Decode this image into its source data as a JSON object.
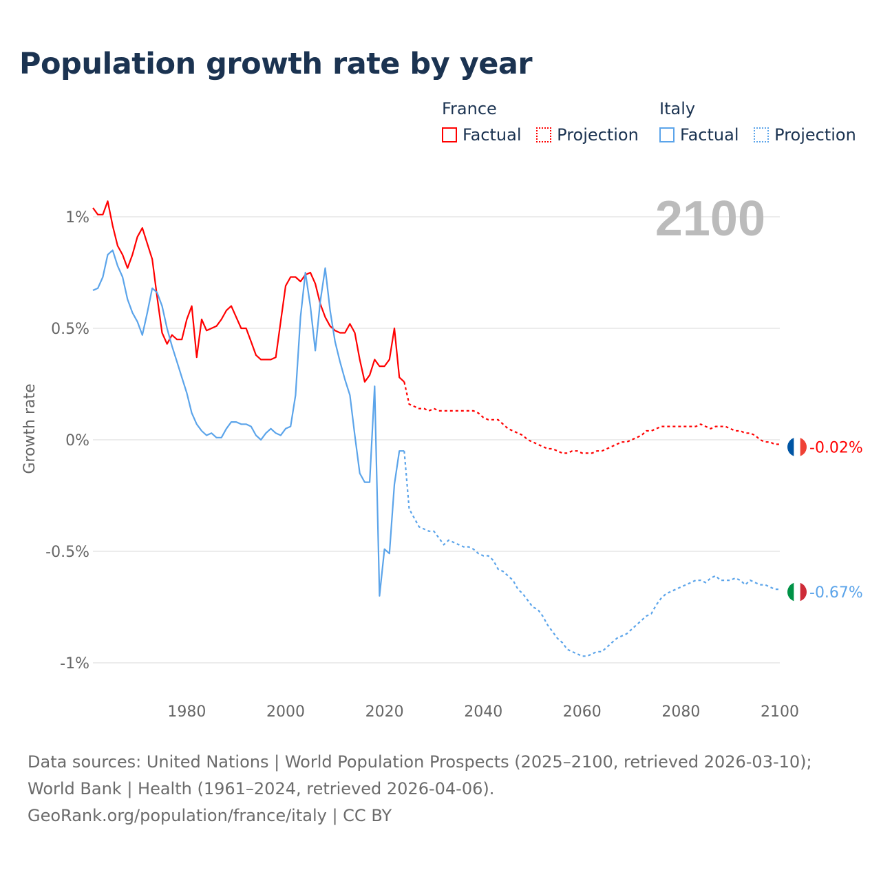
{
  "title": "Population growth rate by year",
  "legend": {
    "groups": [
      {
        "name": "France",
        "items": [
          "Factual",
          "Projection"
        ],
        "color": "#ff0000"
      },
      {
        "name": "Italy",
        "items": [
          "Factual",
          "Projection"
        ],
        "color": "#5ba4ea"
      }
    ]
  },
  "footer": {
    "sources": "Data sources: United Nations | World Population Prospects (2025–2100, retrieved 2026-03-10); World Bank | Health (1961–2024, retrieved 2026-04-06).",
    "credit": "GeoRank.org/population/france/italy | CC BY"
  },
  "chart_data": {
    "type": "line",
    "title": "Population growth rate by year",
    "ylabel": "Growth rate",
    "xlabel": "",
    "year_label": "2100",
    "xlim": [
      1961,
      2100
    ],
    "ylim": [
      -1.1,
      1.1
    ],
    "x_ticks": [
      1980,
      2000,
      2020,
      2040,
      2060,
      2080,
      2100
    ],
    "y_ticks": [
      {
        "v": 1,
        "label": "1%"
      },
      {
        "v": 0.5,
        "label": "0.5%"
      },
      {
        "v": 0,
        "label": "0%"
      },
      {
        "v": -0.5,
        "label": "-0.5%"
      },
      {
        "v": -1,
        "label": "-1%"
      }
    ],
    "grid": true,
    "series": [
      {
        "name": "France",
        "color": "#ff0000",
        "end_label": "-0.02%",
        "flag": [
          "#0055a4",
          "#ffffff",
          "#ef4135"
        ],
        "factual_start": 1961,
        "factual": [
          1.04,
          1.01,
          1.01,
          1.07,
          0.96,
          0.87,
          0.83,
          0.77,
          0.83,
          0.91,
          0.95,
          0.88,
          0.81,
          0.64,
          0.48,
          0.43,
          0.47,
          0.45,
          0.45,
          0.54,
          0.6,
          0.37,
          0.54,
          0.49,
          0.5,
          0.51,
          0.54,
          0.58,
          0.6,
          0.55,
          0.5,
          0.5,
          0.44,
          0.38,
          0.36,
          0.36,
          0.36,
          0.37,
          0.53,
          0.69,
          0.73,
          0.73,
          0.71,
          0.74,
          0.75,
          0.7,
          0.61,
          0.55,
          0.51,
          0.49,
          0.48,
          0.48,
          0.52,
          0.48,
          0.36,
          0.26,
          0.29,
          0.36,
          0.33,
          0.33,
          0.36,
          0.5,
          0.28,
          0.26
        ],
        "projection_start": 2025,
        "projection": [
          0.16,
          0.15,
          0.14,
          0.14,
          0.13,
          0.14,
          0.13,
          0.13,
          0.13,
          0.13,
          0.13,
          0.13,
          0.13,
          0.13,
          0.12,
          0.1,
          0.09,
          0.09,
          0.09,
          0.07,
          0.05,
          0.04,
          0.03,
          0.02,
          0.0,
          -0.01,
          -0.02,
          -0.03,
          -0.04,
          -0.04,
          -0.05,
          -0.06,
          -0.06,
          -0.05,
          -0.05,
          -0.06,
          -0.06,
          -0.06,
          -0.05,
          -0.05,
          -0.04,
          -0.03,
          -0.02,
          -0.01,
          -0.01,
          0.0,
          0.01,
          0.02,
          0.04,
          0.04,
          0.05,
          0.06,
          0.06,
          0.06,
          0.06,
          0.06,
          0.06,
          0.06,
          0.06,
          0.07,
          0.06,
          0.05,
          0.06,
          0.06,
          0.06,
          0.05,
          0.04,
          0.04,
          0.03,
          0.03,
          0.02,
          0.0,
          -0.01,
          -0.01,
          -0.02,
          -0.02
        ]
      },
      {
        "name": "Italy",
        "color": "#5ba4ea",
        "end_label": "-0.67%",
        "flag": [
          "#009246",
          "#ffffff",
          "#ce2b37"
        ],
        "factual_start": 1961,
        "factual": [
          0.67,
          0.68,
          0.73,
          0.83,
          0.85,
          0.78,
          0.73,
          0.63,
          0.57,
          0.53,
          0.47,
          0.57,
          0.68,
          0.66,
          0.6,
          0.5,
          0.42,
          0.35,
          0.28,
          0.21,
          0.12,
          0.07,
          0.04,
          0.02,
          0.03,
          0.01,
          0.01,
          0.05,
          0.08,
          0.08,
          0.07,
          0.07,
          0.06,
          0.02,
          0.0,
          0.03,
          0.05,
          0.03,
          0.02,
          0.05,
          0.06,
          0.2,
          0.55,
          0.75,
          0.6,
          0.4,
          0.62,
          0.77,
          0.58,
          0.44,
          0.35,
          0.27,
          0.2,
          0.02,
          -0.15,
          -0.19,
          -0.19,
          0.24,
          -0.7,
          -0.49,
          -0.51,
          -0.2,
          -0.05,
          -0.05
        ],
        "projection_start": 2025,
        "projection": [
          -0.31,
          -0.35,
          -0.39,
          -0.4,
          -0.41,
          -0.41,
          -0.44,
          -0.47,
          -0.45,
          -0.46,
          -0.47,
          -0.48,
          -0.48,
          -0.49,
          -0.51,
          -0.52,
          -0.52,
          -0.54,
          -0.58,
          -0.59,
          -0.61,
          -0.63,
          -0.67,
          -0.69,
          -0.72,
          -0.75,
          -0.76,
          -0.79,
          -0.83,
          -0.86,
          -0.89,
          -0.91,
          -0.94,
          -0.95,
          -0.96,
          -0.97,
          -0.97,
          -0.96,
          -0.95,
          -0.95,
          -0.93,
          -0.91,
          -0.89,
          -0.88,
          -0.87,
          -0.85,
          -0.83,
          -0.81,
          -0.79,
          -0.78,
          -0.74,
          -0.71,
          -0.69,
          -0.68,
          -0.67,
          -0.66,
          -0.65,
          -0.64,
          -0.63,
          -0.63,
          -0.64,
          -0.62,
          -0.61,
          -0.63,
          -0.63,
          -0.63,
          -0.62,
          -0.63,
          -0.65,
          -0.63,
          -0.64,
          -0.65,
          -0.65,
          -0.66,
          -0.67,
          -0.67
        ]
      }
    ]
  }
}
